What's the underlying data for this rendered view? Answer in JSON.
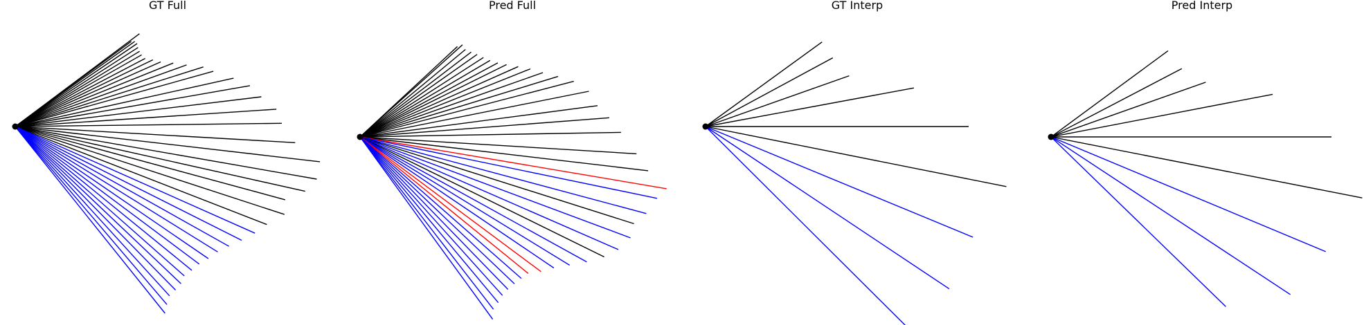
{
  "figure": {
    "panels": [
      {
        "title": "GT Full",
        "lines": [
          {
            "angle": -36.3,
            "length": 208,
            "color": "black"
          },
          {
            "angle": -36.8,
            "length": 224,
            "color": "black"
          },
          {
            "angle": -35.5,
            "length": 212,
            "color": "black"
          },
          {
            "angle": -34.3,
            "length": 213,
            "color": "black"
          },
          {
            "angle": -32.8,
            "length": 211,
            "color": "black"
          },
          {
            "angle": -31.2,
            "length": 210,
            "color": "black"
          },
          {
            "angle": -29.6,
            "length": 210,
            "color": "black"
          },
          {
            "angle": -27.7,
            "length": 212,
            "color": "black"
          },
          {
            "angle": -25.9,
            "length": 221,
            "color": "black"
          },
          {
            "angle": -24.0,
            "length": 230,
            "color": "black"
          },
          {
            "angle": -21.9,
            "length": 246,
            "color": "black"
          },
          {
            "angle": -19.8,
            "length": 263,
            "color": "black"
          },
          {
            "angle": -17.6,
            "length": 285,
            "color": "black"
          },
          {
            "angle": -15.6,
            "length": 297,
            "color": "black"
          },
          {
            "angle": -12.5,
            "length": 323,
            "color": "black"
          },
          {
            "angle": -9.9,
            "length": 344,
            "color": "black"
          },
          {
            "angle": -6.9,
            "length": 358,
            "color": "black"
          },
          {
            "angle": -3.8,
            "length": 378,
            "color": "black"
          },
          {
            "angle": -0.7,
            "length": 385,
            "color": "black"
          },
          {
            "angle": 3.3,
            "length": 405,
            "color": "black"
          },
          {
            "angle": 6.6,
            "length": 443,
            "color": "black"
          },
          {
            "angle": 9.9,
            "length": 442,
            "color": "black"
          },
          {
            "angle": 12.6,
            "length": 429,
            "color": "black"
          },
          {
            "angle": 15.2,
            "length": 404,
            "color": "black"
          },
          {
            "angle": 18.1,
            "length": 409,
            "color": "black"
          },
          {
            "angle": 21.3,
            "length": 390,
            "color": "black"
          },
          {
            "angle": 24.0,
            "length": 379,
            "color": "blue"
          },
          {
            "angle": 26.7,
            "length": 366,
            "color": "blue"
          },
          {
            "angle": 29.3,
            "length": 354,
            "color": "blue"
          },
          {
            "angle": 31.8,
            "length": 344,
            "color": "blue"
          },
          {
            "angle": 34.4,
            "length": 338,
            "color": "blue"
          },
          {
            "angle": 36.8,
            "length": 332,
            "color": "blue"
          },
          {
            "angle": 39.2,
            "length": 329,
            "color": "blue"
          },
          {
            "angle": 41.5,
            "length": 326,
            "color": "blue"
          },
          {
            "angle": 43.5,
            "length": 330,
            "color": "blue"
          },
          {
            "angle": 45.6,
            "length": 331,
            "color": "blue"
          },
          {
            "angle": 47.7,
            "length": 331,
            "color": "blue"
          },
          {
            "angle": 49.6,
            "length": 338,
            "color": "blue"
          },
          {
            "angle": 51.3,
            "length": 346,
            "color": "blue"
          }
        ]
      },
      {
        "title": "Pred Full",
        "lines": [
          {
            "angle": -42.9,
            "length": 192,
            "color": "black"
          },
          {
            "angle": -42.0,
            "length": 199,
            "color": "black"
          },
          {
            "angle": -39.7,
            "length": 198,
            "color": "black"
          },
          {
            "angle": -37.4,
            "length": 202,
            "color": "black"
          },
          {
            "angle": -35.2,
            "length": 207,
            "color": "black"
          },
          {
            "angle": -32.8,
            "length": 212,
            "color": "black"
          },
          {
            "angle": -30.5,
            "length": 218,
            "color": "black"
          },
          {
            "angle": -28.3,
            "length": 226,
            "color": "black"
          },
          {
            "angle": -26.3,
            "length": 236,
            "color": "black"
          },
          {
            "angle": -24.0,
            "length": 250,
            "color": "black"
          },
          {
            "angle": -21.8,
            "length": 265,
            "color": "black"
          },
          {
            "angle": -19.4,
            "length": 280,
            "color": "black"
          },
          {
            "angle": -17.0,
            "length": 299,
            "color": "black"
          },
          {
            "angle": -14.6,
            "length": 319,
            "color": "black"
          },
          {
            "angle": -11.3,
            "length": 337,
            "color": "black"
          },
          {
            "angle": -7.5,
            "length": 346,
            "color": "black"
          },
          {
            "angle": -4.4,
            "length": 361,
            "color": "black"
          },
          {
            "angle": -1.0,
            "length": 377,
            "color": "black"
          },
          {
            "angle": 3.5,
            "length": 400,
            "color": "black"
          },
          {
            "angle": 6.7,
            "length": 419,
            "color": "black"
          },
          {
            "angle": 9.6,
            "length": 449,
            "color": "red"
          },
          {
            "angle": 11.7,
            "length": 438,
            "color": "blue"
          },
          {
            "angle": 15.0,
            "length": 428,
            "color": "blue"
          },
          {
            "angle": 17.6,
            "length": 415,
            "color": "black"
          },
          {
            "angle": 20.5,
            "length": 417,
            "color": "blue"
          },
          {
            "angle": 23.6,
            "length": 407,
            "color": "blue"
          },
          {
            "angle": 26.2,
            "length": 393,
            "color": "black"
          },
          {
            "angle": 28.9,
            "length": 374,
            "color": "blue"
          },
          {
            "angle": 31.5,
            "length": 355,
            "color": "blue"
          },
          {
            "angle": 34.1,
            "length": 338,
            "color": "blue"
          },
          {
            "angle": 36.7,
            "length": 326,
            "color": "red"
          },
          {
            "angle": 39.1,
            "length": 313,
            "color": "red"
          },
          {
            "angle": 41.3,
            "length": 310,
            "color": "blue"
          },
          {
            "angle": 43.6,
            "length": 308,
            "color": "blue"
          },
          {
            "angle": 45.9,
            "length": 307,
            "color": "blue"
          },
          {
            "angle": 48.1,
            "length": 308,
            "color": "blue"
          },
          {
            "angle": 50.2,
            "length": 312,
            "color": "blue"
          },
          {
            "angle": 52.3,
            "length": 315,
            "color": "blue"
          },
          {
            "angle": 54.0,
            "length": 326,
            "color": "blue"
          }
        ]
      },
      {
        "title": "GT Interp",
        "lines": [
          {
            "angle": -36.0,
            "length": 208,
            "color": "black"
          },
          {
            "angle": -28.4,
            "length": 209,
            "color": "black"
          },
          {
            "angle": -19.5,
            "length": 220,
            "color": "black"
          },
          {
            "angle": -10.5,
            "length": 306,
            "color": "black"
          },
          {
            "angle": 0.0,
            "length": 380,
            "color": "black"
          },
          {
            "angle": 11.3,
            "length": 443,
            "color": "black"
          },
          {
            "angle": 22.5,
            "length": 418,
            "color": "blue"
          },
          {
            "angle": 33.7,
            "length": 423,
            "color": "blue"
          },
          {
            "angle": 44.9,
            "length": 439,
            "color": "blue"
          }
        ]
      },
      {
        "title": "Pred Interp",
        "lines": [
          {
            "angle": -36.4,
            "length": 210,
            "color": "black"
          },
          {
            "angle": -27.6,
            "length": 213,
            "color": "black"
          },
          {
            "angle": -19.5,
            "length": 237,
            "color": "black"
          },
          {
            "angle": -10.9,
            "length": 326,
            "color": "black"
          },
          {
            "angle": 0.0,
            "length": 405,
            "color": "black"
          },
          {
            "angle": 11.1,
            "length": 458,
            "color": "black"
          },
          {
            "angle": 22.7,
            "length": 430,
            "color": "blue"
          },
          {
            "angle": 33.4,
            "length": 414,
            "color": "blue"
          },
          {
            "angle": 44.2,
            "length": 352,
            "color": "blue"
          }
        ]
      }
    ]
  }
}
